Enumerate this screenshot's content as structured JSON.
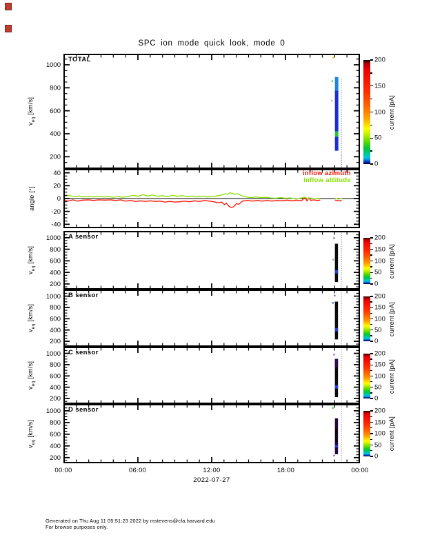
{
  "page": {
    "title": "SPC ion mode quick look, mode 0",
    "footer_lines": [
      "Generated on Thu Aug 11 05:51:23 2022 by mstevens@cfa.harvard.edu",
      "For browse purposes only."
    ]
  },
  "chart_data": {
    "type": "multi-panel time series quicklook (velocity spectrograms + angle line plot)",
    "x_axis": {
      "tick_labels": [
        "00:00",
        "06:00",
        "12:00",
        "18:00",
        "00:00"
      ],
      "date_label": "2022-07-27",
      "hours": 24,
      "major_tick_every_hours": 6,
      "minor_tick_every_hours": 1
    },
    "velocity_axis": {
      "sym": "v",
      "sub": "eq",
      "units": " [km/s]",
      "label_plain": "veq [km/s]",
      "major_ticks": [
        200,
        400,
        600,
        800,
        1000
      ],
      "minor_step": 50
    },
    "angle_axis": {
      "label": "angle [°]",
      "major_ticks": [
        40,
        20,
        0,
        -20,
        -40
      ],
      "minor_step": 5,
      "range": [
        -45,
        45
      ]
    },
    "colorbar_scale": {
      "label": "current [pA]",
      "min": 0,
      "max": 200,
      "ticks": [
        200,
        150,
        100,
        50,
        0
      ],
      "gradient": [
        [
          0,
          "#000000"
        ],
        [
          3,
          "#a00000"
        ],
        [
          9,
          "#f00000"
        ],
        [
          30,
          "#ff2d00"
        ],
        [
          45,
          "#ff6a00"
        ],
        [
          55,
          "#ff9d00"
        ],
        [
          61,
          "#ffd000"
        ],
        [
          66,
          "#fdff00"
        ],
        [
          72,
          "#b7ef00"
        ],
        [
          79,
          "#57d800"
        ],
        [
          85,
          "#00c63a"
        ],
        [
          90,
          "#00c890"
        ],
        [
          94,
          "#00c4e4"
        ],
        [
          96.5,
          "#0071d8"
        ],
        [
          98.5,
          "#0018a8"
        ],
        [
          100,
          "#000020"
        ]
      ]
    },
    "panels": [
      {
        "id": "total",
        "label": "TOTAL",
        "yaxis": "v",
        "vmin": 100,
        "vmax": 1090,
        "marks": [
          {
            "type": "seg",
            "h0": 22.02,
            "h1": 22.3,
            "v0": 776,
            "v1": 894,
            "color": "#1e86d8"
          },
          {
            "type": "seg",
            "h0": 22.02,
            "h1": 22.3,
            "v0": 420,
            "v1": 776,
            "color": "#1c2fd0"
          },
          {
            "type": "seg",
            "h0": 22.02,
            "h1": 22.3,
            "v0": 374,
            "v1": 420,
            "color": "#2ec23a"
          },
          {
            "type": "seg",
            "h0": 22.02,
            "h1": 22.3,
            "v0": 252,
            "v1": 374,
            "color": "#1c2fd0"
          },
          {
            "type": "dot",
            "h": 21.88,
            "v": 1062,
            "color": "#d8d800"
          },
          {
            "type": "dot",
            "h": 21.8,
            "v": 858,
            "color": "#3ec84a"
          },
          {
            "type": "dot",
            "h": 21.76,
            "v": 688,
            "color": "#b0b0b0"
          },
          {
            "type": "dashcol",
            "h": 22.55,
            "v0": 604,
            "v1": 888,
            "color": "#5e9ae8"
          },
          {
            "type": "dashcol",
            "h": 22.55,
            "v0": 218,
            "v1": 604,
            "color": "#4b66d8"
          },
          {
            "type": "dashcol",
            "h": 22.55,
            "v0": 108,
            "v1": 218,
            "color": "#7e4fb4"
          }
        ]
      },
      {
        "id": "angle",
        "label": "",
        "yaxis": "angle",
        "vmin": -45,
        "vmax": 45,
        "series": [
          {
            "name": "inflow azimuth",
            "color": "#ff1100",
            "segments": [
              [
                [
                  0,
                  -2
                ],
                [
                  0.3,
                  -4
                ],
                [
                  0.7,
                  -2
                ],
                [
                  1.1,
                  -4
                ],
                [
                  1.5,
                  -2.5
                ],
                [
                  2,
                  -2
                ],
                [
                  2.4,
                  -3
                ],
                [
                  2.8,
                  -2
                ],
                [
                  3.3,
                  -2.5
                ],
                [
                  3.8,
                  -2
                ],
                [
                  4.2,
                  -3
                ],
                [
                  4.6,
                  -2
                ],
                [
                  5,
                  -4
                ],
                [
                  5.4,
                  -3
                ],
                [
                  5.8,
                  -4.5
                ],
                [
                  6.2,
                  -3.5
                ],
                [
                  6.6,
                  -4.5
                ],
                [
                  7,
                  -3.5
                ],
                [
                  7.4,
                  -4.5
                ],
                [
                  7.8,
                  -4
                ],
                [
                  8.2,
                  -5.5
                ],
                [
                  8.6,
                  -4.5
                ],
                [
                  9,
                  -5.5
                ],
                [
                  9.4,
                  -5
                ],
                [
                  9.8,
                  -4
                ],
                [
                  10.2,
                  -5
                ],
                [
                  10.6,
                  -3.5
                ],
                [
                  11,
                  -4.5
                ],
                [
                  11.4,
                  -3
                ],
                [
                  11.8,
                  -4
                ],
                [
                  12.2,
                  -5
                ],
                [
                  12.5,
                  -6.5
                ],
                [
                  12.8,
                  -5.5
                ],
                [
                  13.05,
                  -9.5
                ],
                [
                  13.2,
                  -7
                ],
                [
                  13.4,
                  -12
                ],
                [
                  13.6,
                  -14
                ],
                [
                  13.8,
                  -12.5
                ],
                [
                  14,
                  -8
                ],
                [
                  14.2,
                  -9
                ],
                [
                  14.5,
                  -4
                ],
                [
                  14.9,
                  -3
                ],
                [
                  15.3,
                  -4
                ],
                [
                  15.7,
                  -3
                ],
                [
                  16.1,
                  -4
                ],
                [
                  16.5,
                  -3
                ],
                [
                  16.9,
                  -4
                ],
                [
                  17.3,
                  -3
                ],
                [
                  17.7,
                  -3.5
                ],
                [
                  18.1,
                  -2.5
                ],
                [
                  18.5,
                  -3.5
                ],
                [
                  18.9,
                  -2.5
                ],
                [
                  19.3,
                  -3.5
                ],
                [
                  19.6,
                  2
                ],
                [
                  19.75,
                  -4
                ],
                [
                  19.9,
                  1
                ],
                [
                  20.05,
                  -3
                ],
                [
                  20.3,
                  -2
                ],
                [
                  20.6,
                  -3
                ],
                [
                  20.8,
                  -2.5
                ]
              ],
              [
                [
                  22.05,
                  -2.5
                ],
                [
                  22.3,
                  -3.5
                ],
                [
                  22.55,
                  -3
                ]
              ]
            ]
          },
          {
            "name": "inflow attitude",
            "color": "#8ae000",
            "segments": [
              [
                [
                  0,
                  3
                ],
                [
                  0.4,
                  5
                ],
                [
                  0.8,
                  3
                ],
                [
                  1.2,
                  4
                ],
                [
                  1.6,
                  2.5
                ],
                [
                  2,
                  3.5
                ],
                [
                  2.4,
                  2.5
                ],
                [
                  2.8,
                  3.5
                ],
                [
                  3.2,
                  2.5
                ],
                [
                  3.6,
                  3
                ],
                [
                  4,
                  2
                ],
                [
                  4.4,
                  3
                ],
                [
                  4.8,
                  2
                ],
                [
                  5.2,
                  3
                ],
                [
                  5.6,
                  5
                ],
                [
                  6,
                  3.5
                ],
                [
                  6.4,
                  6
                ],
                [
                  6.8,
                  4
                ],
                [
                  7.2,
                  5.5
                ],
                [
                  7.6,
                  3.5
                ],
                [
                  8,
                  4.5
                ],
                [
                  8.4,
                  3
                ],
                [
                  8.8,
                  5
                ],
                [
                  9.2,
                  3.5
                ],
                [
                  9.6,
                  4.5
                ],
                [
                  10,
                  3
                ],
                [
                  10.4,
                  4
                ],
                [
                  10.8,
                  2.5
                ],
                [
                  11.2,
                  3.5
                ],
                [
                  11.6,
                  2.5
                ],
                [
                  12,
                  3
                ],
                [
                  12.4,
                  4
                ],
                [
                  12.8,
                  5.5
                ],
                [
                  13.1,
                  7.5
                ],
                [
                  13.3,
                  6.5
                ],
                [
                  13.5,
                  9
                ],
                [
                  13.7,
                  8
                ],
                [
                  13.9,
                  6.5
                ],
                [
                  14.1,
                  7.5
                ],
                [
                  14.4,
                  4.5
                ],
                [
                  14.8,
                  2.5
                ],
                [
                  15.2,
                  1.5
                ],
                [
                  15.6,
                  2.5
                ],
                [
                  16,
                  1.5
                ],
                [
                  16.4,
                  2
                ],
                [
                  16.8,
                  1
                ],
                [
                  17.2,
                  0.5
                ],
                [
                  17.6,
                  1.5
                ],
                [
                  18,
                  0.5
                ],
                [
                  18.4,
                  1
                ],
                [
                  18.8,
                  -0.5
                ],
                [
                  19.2,
                  0.5
                ],
                [
                  19.6,
                  2
                ],
                [
                  19.8,
                  -0.5
                ],
                [
                  20,
                  1
                ],
                [
                  20.3,
                  0
                ],
                [
                  20.8,
                  -0.5
                ]
              ],
              [
                [
                  22.05,
                  0.5
                ],
                [
                  22.3,
                  -1
                ],
                [
                  22.55,
                  0
                ]
              ]
            ]
          }
        ],
        "marks": [
          {
            "type": "dot",
            "h": 22.55,
            "v": 43,
            "color": "#7e4fb4"
          }
        ]
      },
      {
        "id": "sensor-a",
        "label": "A sensor",
        "yaxis": "v",
        "vmin": 115,
        "vmax": 1105,
        "marks": [
          {
            "type": "seg",
            "h0": 22.02,
            "h1": 22.27,
            "v0": 233,
            "v1": 896,
            "color": "#0b0b0b"
          },
          {
            "type": "seg",
            "h0": 22.02,
            "h1": 22.27,
            "v0": 382,
            "v1": 440,
            "color": "#2742d8"
          },
          {
            "type": "dot",
            "h": 21.95,
            "v": 992,
            "color": "#7e4fb4"
          },
          {
            "type": "dot",
            "h": 21.88,
            "v": 620,
            "color": "#9a9a9a"
          },
          {
            "type": "dashcol",
            "h": 22.55,
            "v0": 118,
            "v1": 1100,
            "color": "#9a9a9a"
          }
        ]
      },
      {
        "id": "sensor-b",
        "label": "B sensor",
        "yaxis": "v",
        "vmin": 115,
        "vmax": 1105,
        "marks": [
          {
            "type": "seg",
            "h0": 22.02,
            "h1": 22.27,
            "v0": 233,
            "v1": 903,
            "color": "#0b0b0b"
          },
          {
            "type": "seg",
            "h0": 22.02,
            "h1": 22.27,
            "v0": 376,
            "v1": 436,
            "color": "#2742d8"
          },
          {
            "type": "dot",
            "h": 21.86,
            "v": 880,
            "color": "#3b55cc"
          },
          {
            "type": "dot",
            "h": 22.0,
            "v": 1010,
            "color": "#7e4fb4"
          },
          {
            "type": "dashcol",
            "h": 22.55,
            "v0": 118,
            "v1": 1100,
            "color": "#9a9a9a"
          }
        ]
      },
      {
        "id": "sensor-c",
        "label": "C sensor",
        "yaxis": "v",
        "vmin": 115,
        "vmax": 1105,
        "marks": [
          {
            "type": "seg",
            "h0": 22.02,
            "h1": 22.27,
            "v0": 224,
            "v1": 903,
            "color": "#0b0b0b"
          },
          {
            "type": "seg",
            "h0": 22.02,
            "h1": 22.27,
            "v0": 756,
            "v1": 903,
            "color": "#2e1048"
          },
          {
            "type": "seg",
            "h0": 22.02,
            "h1": 22.27,
            "v0": 376,
            "v1": 436,
            "color": "#2742d8"
          },
          {
            "type": "dot",
            "h": 21.95,
            "v": 978,
            "color": "#7e4fb4"
          },
          {
            "type": "dashcol",
            "h": 22.55,
            "v0": 118,
            "v1": 1100,
            "color": "#9a9a9a"
          }
        ]
      },
      {
        "id": "sensor-d",
        "label": "D sensor",
        "yaxis": "v",
        "vmin": 115,
        "vmax": 1105,
        "marks": [
          {
            "type": "seg",
            "h0": 22.02,
            "h1": 22.27,
            "v0": 258,
            "v1": 872,
            "color": "#220a3c"
          },
          {
            "type": "seg",
            "h0": 22.05,
            "h1": 22.22,
            "v0": 470,
            "v1": 700,
            "color": "#0b0b0b"
          },
          {
            "type": "seg",
            "h0": 22.02,
            "h1": 22.27,
            "v0": 374,
            "v1": 412,
            "color": "#2742d8"
          },
          {
            "type": "dot",
            "h": 21.85,
            "v": 1048,
            "color": "#3ec84a"
          },
          {
            "type": "dot",
            "h": 21.95,
            "v": 235,
            "color": "#7e4fb4"
          },
          {
            "type": "dashcol",
            "h": 22.55,
            "v0": 118,
            "v1": 1100,
            "color": "#9a9a9a"
          }
        ]
      }
    ]
  }
}
